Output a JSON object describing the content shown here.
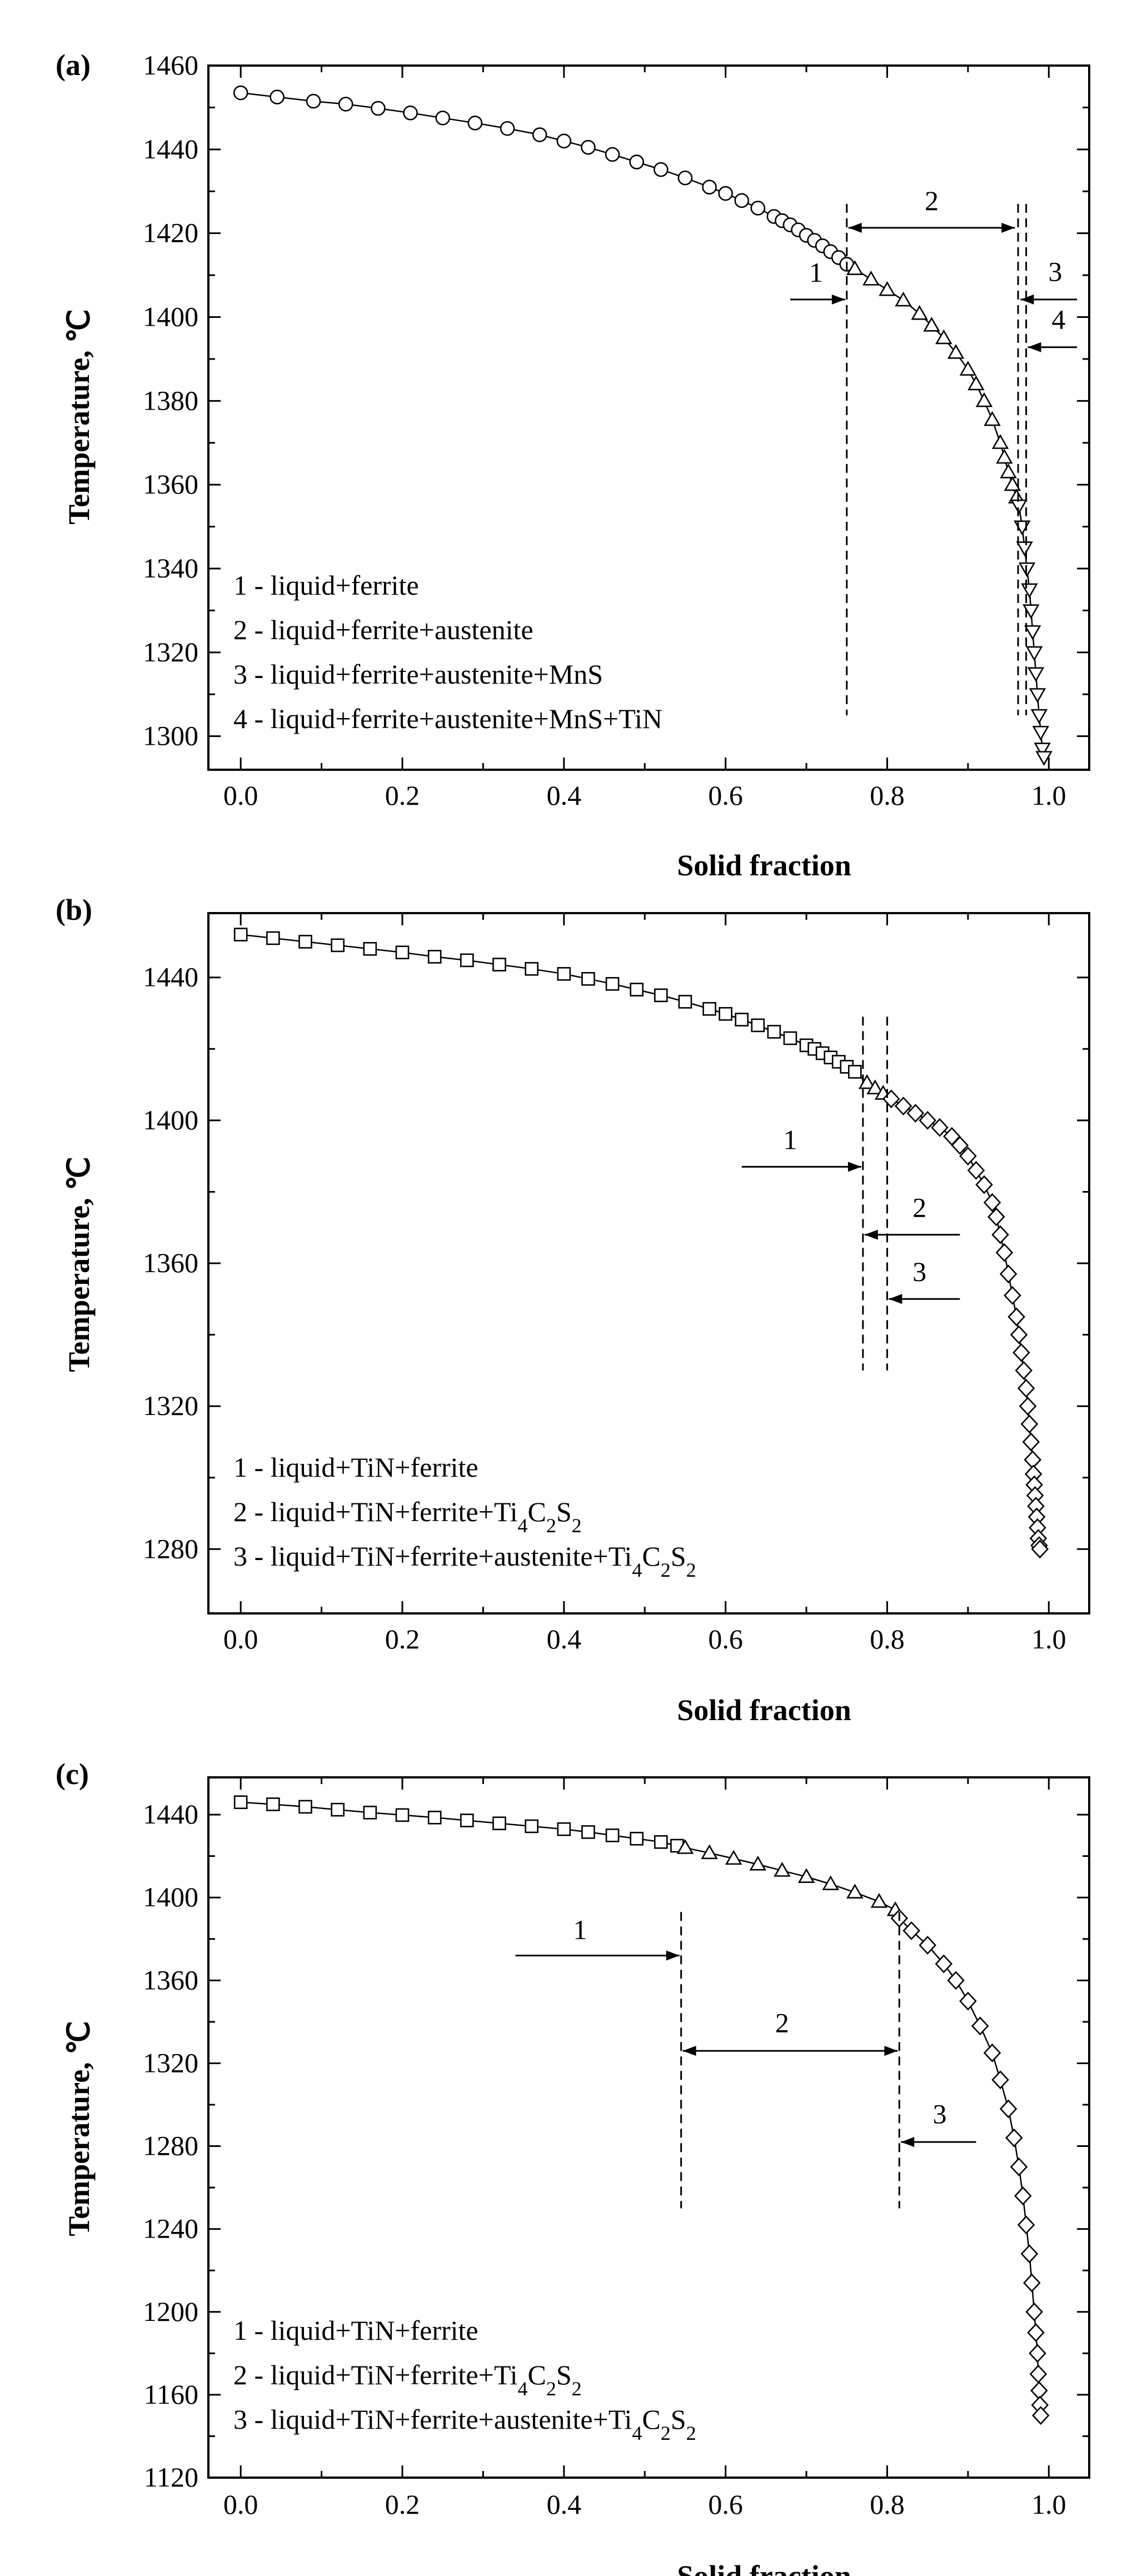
{
  "chart_data": [
    {
      "type": "scatter",
      "panel_label": "(a)",
      "xlabel": "Solid fraction",
      "ylabel": "Temperature, ℃",
      "xlim": [
        -0.04,
        1.05
      ],
      "ylim": [
        1292,
        1460
      ],
      "xticks": [
        0.0,
        0.2,
        0.4,
        0.6,
        0.8,
        1.0
      ],
      "xtick_labels": [
        "0.0",
        "0.2",
        "0.4",
        "0.6",
        "0.8",
        "1.0"
      ],
      "yticks": [
        1300,
        1320,
        1340,
        1360,
        1380,
        1400,
        1420,
        1440,
        1460
      ],
      "ytick_labels": [
        "1300",
        "1320",
        "1340",
        "1360",
        "1380",
        "1400",
        "1420",
        "1440",
        "1460"
      ],
      "series": [
        {
          "name": "liquid+ferrite",
          "marker": "circle",
          "x": [
            0.0,
            0.045,
            0.09,
            0.13,
            0.17,
            0.21,
            0.25,
            0.29,
            0.33,
            0.37,
            0.4,
            0.43,
            0.46,
            0.49,
            0.52,
            0.55,
            0.58,
            0.6,
            0.62,
            0.64,
            0.66,
            0.67,
            0.68,
            0.69,
            0.7,
            0.71,
            0.72,
            0.73,
            0.74,
            0.75
          ],
          "y": [
            1453.5,
            1452.5,
            1451.5,
            1450.8,
            1449.8,
            1448.7,
            1447.5,
            1446.3,
            1445.0,
            1443.5,
            1442.0,
            1440.5,
            1438.8,
            1437.0,
            1435.2,
            1433.2,
            1431.0,
            1429.5,
            1427.8,
            1426.0,
            1424.0,
            1423.0,
            1422.0,
            1420.8,
            1419.5,
            1418.3,
            1417.0,
            1415.6,
            1414.2,
            1412.6
          ]
        },
        {
          "name": "liquid+ferrite+austenite",
          "marker": "triangle-up",
          "x": [
            0.76,
            0.78,
            0.8,
            0.82,
            0.84,
            0.855,
            0.87,
            0.885,
            0.9,
            0.91,
            0.92,
            0.93,
            0.94,
            0.945,
            0.95,
            0.955,
            0.96
          ],
          "y": [
            1411.5,
            1409.0,
            1406.5,
            1404.0,
            1400.8,
            1398.0,
            1395.0,
            1391.5,
            1387.5,
            1384.0,
            1380.0,
            1375.5,
            1370.0,
            1366.5,
            1363.0,
            1360.0,
            1357.0
          ]
        },
        {
          "name": "liquid+ferrite+austenite+MnS",
          "marker": "triangle-down",
          "x": [
            0.963,
            0.967,
            0.97,
            0.973,
            0.976,
            0.978,
            0.98,
            0.982,
            0.984,
            0.986,
            0.988,
            0.99,
            0.992,
            0.994
          ],
          "y": [
            1355.0,
            1350.0,
            1345.0,
            1340.0,
            1335.0,
            1330.0,
            1325.0,
            1320.0,
            1315.0,
            1310.0,
            1305.0,
            1301.0,
            1297.0,
            1295.0
          ]
        }
      ],
      "phase_boundaries_x": [
        0.75,
        0.962,
        0.972
      ],
      "region_labels": [
        "1",
        "2",
        "3",
        "4"
      ],
      "legend": [
        "1 - liquid+ferrite",
        "2 - liquid+ferrite+austenite",
        "3 - liquid+ferrite+austenite+MnS",
        "4 - liquid+ferrite+austenite+MnS+TiN"
      ]
    },
    {
      "type": "scatter",
      "panel_label": "(b)",
      "xlabel": "Solid fraction",
      "ylabel": "Temperature, ℃",
      "xlim": [
        -0.04,
        1.05
      ],
      "ylim": [
        1262,
        1458
      ],
      "xticks": [
        0.0,
        0.2,
        0.4,
        0.6,
        0.8,
        1.0
      ],
      "xtick_labels": [
        "0.0",
        "0.2",
        "0.4",
        "0.6",
        "0.8",
        "1.0"
      ],
      "yticks": [
        1280,
        1320,
        1360,
        1400,
        1440
      ],
      "ytick_labels": [
        "1280",
        "1320",
        "1360",
        "1400",
        "1440"
      ],
      "series": [
        {
          "name": "liquid+TiN",
          "marker": "square",
          "x": [
            0.0,
            0.04,
            0.08,
            0.12,
            0.16,
            0.2,
            0.24,
            0.28,
            0.32,
            0.36,
            0.4,
            0.43,
            0.46,
            0.49,
            0.52,
            0.55,
            0.58,
            0.6,
            0.62,
            0.64,
            0.66,
            0.68,
            0.7,
            0.71,
            0.72,
            0.73,
            0.74,
            0.75,
            0.76
          ],
          "y": [
            1452.0,
            1451.0,
            1450.0,
            1449.0,
            1448.0,
            1447.0,
            1445.8,
            1444.8,
            1443.6,
            1442.4,
            1441.0,
            1439.6,
            1438.2,
            1436.6,
            1435.0,
            1433.2,
            1431.2,
            1429.8,
            1428.2,
            1426.6,
            1424.8,
            1423.0,
            1421.0,
            1420.0,
            1418.8,
            1417.6,
            1416.4,
            1415.0,
            1413.6
          ]
        },
        {
          "name": "liquid+TiN+ferrite",
          "marker": "triangle-up",
          "x": [
            0.775,
            0.785,
            0.795
          ],
          "y": [
            1410.5,
            1409.0,
            1407.5
          ]
        },
        {
          "name": "liquid+TiN+ferrite+austenite+Ti4C2S2",
          "marker": "diamond",
          "x": [
            0.805,
            0.82,
            0.835,
            0.85,
            0.865,
            0.88,
            0.89,
            0.9,
            0.91,
            0.92,
            0.93,
            0.935,
            0.94,
            0.945,
            0.95,
            0.955,
            0.96,
            0.963,
            0.966,
            0.969,
            0.972,
            0.974,
            0.976,
            0.978,
            0.98,
            0.981,
            0.982,
            0.983,
            0.984,
            0.985,
            0.986,
            0.987,
            0.988,
            0.989
          ],
          "y": [
            1406.0,
            1404.0,
            1402.0,
            1400.0,
            1398.0,
            1395.5,
            1393.0,
            1390.0,
            1386.0,
            1382.0,
            1377.0,
            1373.0,
            1368.0,
            1363.0,
            1357.0,
            1351.0,
            1345.0,
            1340.0,
            1335.0,
            1330.0,
            1325.0,
            1320.0,
            1315.0,
            1310.0,
            1305.0,
            1301.0,
            1298.0,
            1295.0,
            1292.0,
            1289.0,
            1286.0,
            1283.0,
            1281.0,
            1280.0
          ]
        }
      ],
      "phase_boundaries_x": [
        0.77,
        0.8
      ],
      "region_labels": [
        "1",
        "2",
        "3"
      ],
      "legend": [
        "1 - liquid+TiN+ferrite",
        "2 - liquid+TiN+ferrite+Ti₄C₂S₂",
        "3 - liquid+TiN+ferrite+austenite+Ti₄C₂S₂"
      ]
    },
    {
      "type": "scatter",
      "panel_label": "(c)",
      "xlabel": "Solid fraction",
      "ylabel": "Temperature, ℃",
      "xlim": [
        -0.04,
        1.05
      ],
      "ylim": [
        1120,
        1458
      ],
      "xticks": [
        0.0,
        0.2,
        0.4,
        0.6,
        0.8,
        1.0
      ],
      "xtick_labels": [
        "0.0",
        "0.2",
        "0.4",
        "0.6",
        "0.8",
        "1.0"
      ],
      "yticks": [
        1120,
        1160,
        1200,
        1240,
        1280,
        1320,
        1360,
        1400,
        1440
      ],
      "ytick_labels": [
        "1120",
        "1160",
        "1200",
        "1240",
        "1280",
        "1320",
        "1360",
        "1400",
        "1440"
      ],
      "series": [
        {
          "name": "liquid+TiN",
          "marker": "square",
          "x": [
            0.0,
            0.04,
            0.08,
            0.12,
            0.16,
            0.2,
            0.24,
            0.28,
            0.32,
            0.36,
            0.4,
            0.43,
            0.46,
            0.49,
            0.52,
            0.54
          ],
          "y": [
            1446.0,
            1445.0,
            1443.8,
            1442.4,
            1441.0,
            1439.8,
            1438.6,
            1437.2,
            1435.8,
            1434.4,
            1433.0,
            1431.6,
            1430.0,
            1428.4,
            1426.8,
            1425.0
          ]
        },
        {
          "name": "liquid+TiN+ferrite",
          "marker": "triangle-up",
          "x": [
            0.55,
            0.58,
            0.61,
            0.64,
            0.67,
            0.7,
            0.73,
            0.76,
            0.79,
            0.81
          ],
          "y": [
            1424.0,
            1421.5,
            1418.8,
            1416.0,
            1413.0,
            1410.0,
            1406.5,
            1402.5,
            1398.0,
            1394.0
          ]
        },
        {
          "name": "liquid+TiN+ferrite+Ti4C2S2",
          "marker": "diamond",
          "x": [
            0.815,
            0.83,
            0.85,
            0.87,
            0.885,
            0.9,
            0.915,
            0.93,
            0.94,
            0.95,
            0.957,
            0.963,
            0.968,
            0.972,
            0.976,
            0.979,
            0.982,
            0.984,
            0.986,
            0.987,
            0.988,
            0.989,
            0.99
          ],
          "y": [
            1390.0,
            1384.0,
            1377.0,
            1368.0,
            1360.0,
            1350.0,
            1338.0,
            1325.0,
            1312.0,
            1298.0,
            1284.0,
            1270.0,
            1256.0,
            1242.0,
            1228.0,
            1214.0,
            1200.0,
            1190.0,
            1180.0,
            1170.0,
            1162.0,
            1155.0,
            1150.0
          ]
        }
      ],
      "phase_boundaries_x": [
        0.545,
        0.815
      ],
      "region_labels": [
        "1",
        "2",
        "3"
      ],
      "legend": [
        "1 - liquid+TiN+ferrite",
        "2 - liquid+TiN+ferrite+Ti₄C₂S₂",
        "3 - liquid+TiN+ferrite+austenite+Ti₄C₂S₂"
      ]
    }
  ]
}
